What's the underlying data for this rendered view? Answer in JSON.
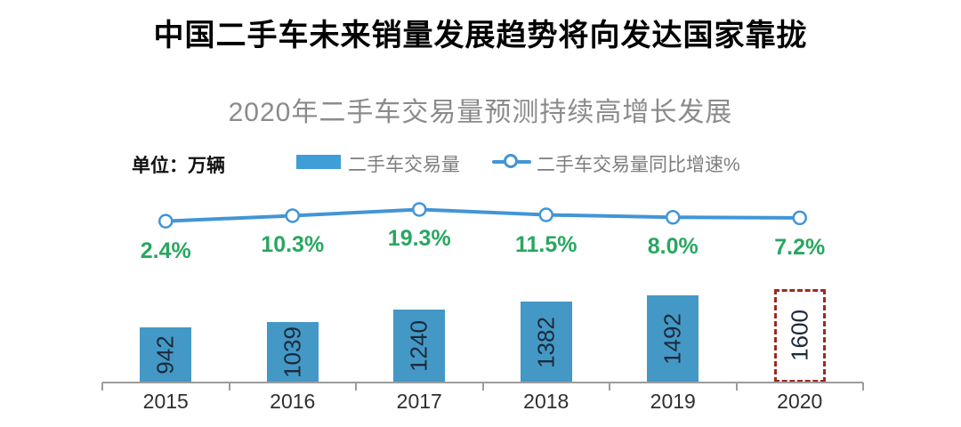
{
  "page": {
    "title": "中国二手车未来销量发展趋势将向发达国家靠拢",
    "subtitle": "2020年二手车交易量预测持续高增长发展",
    "unit_label": "单位：万辆"
  },
  "legend": {
    "bar_series_label": "二手车交易量",
    "line_series_label": "二手车交易量同比增速%"
  },
  "colors": {
    "bar_fill": "#4498c6",
    "legend_blue": "#3f9ed8",
    "line_stroke": "#4295d6",
    "growth_green": "#28a761",
    "forecast_red": "#9c2a21",
    "bar_value_text": "#1c2a3a"
  },
  "chart_data": {
    "type": "bar",
    "combo": "bar+line",
    "title": "2020年二手车交易量预测持续高增长发展",
    "categories": [
      "2015",
      "2016",
      "2017",
      "2018",
      "2019",
      "2020"
    ],
    "series": [
      {
        "name": "二手车交易量",
        "type": "bar",
        "unit": "万辆",
        "values": [
          942,
          1039,
          1240,
          1382,
          1492,
          1600
        ],
        "value_labels": [
          "942",
          "1039",
          "1240",
          "1382",
          "1492",
          "1600"
        ],
        "forecast_index": 5
      },
      {
        "name": "二手车交易量同比增速%",
        "type": "line",
        "unit": "%",
        "values": [
          2.4,
          10.3,
          19.3,
          11.5,
          8.0,
          7.2
        ],
        "value_labels": [
          "2.4%",
          "10.3%",
          "19.3%",
          "11.5%",
          "8.0%",
          "7.2%"
        ]
      }
    ],
    "legend_position": "top",
    "grid": false,
    "x_axis": {
      "line": true,
      "ticks": true
    },
    "y_axis": {
      "visible": false
    }
  }
}
